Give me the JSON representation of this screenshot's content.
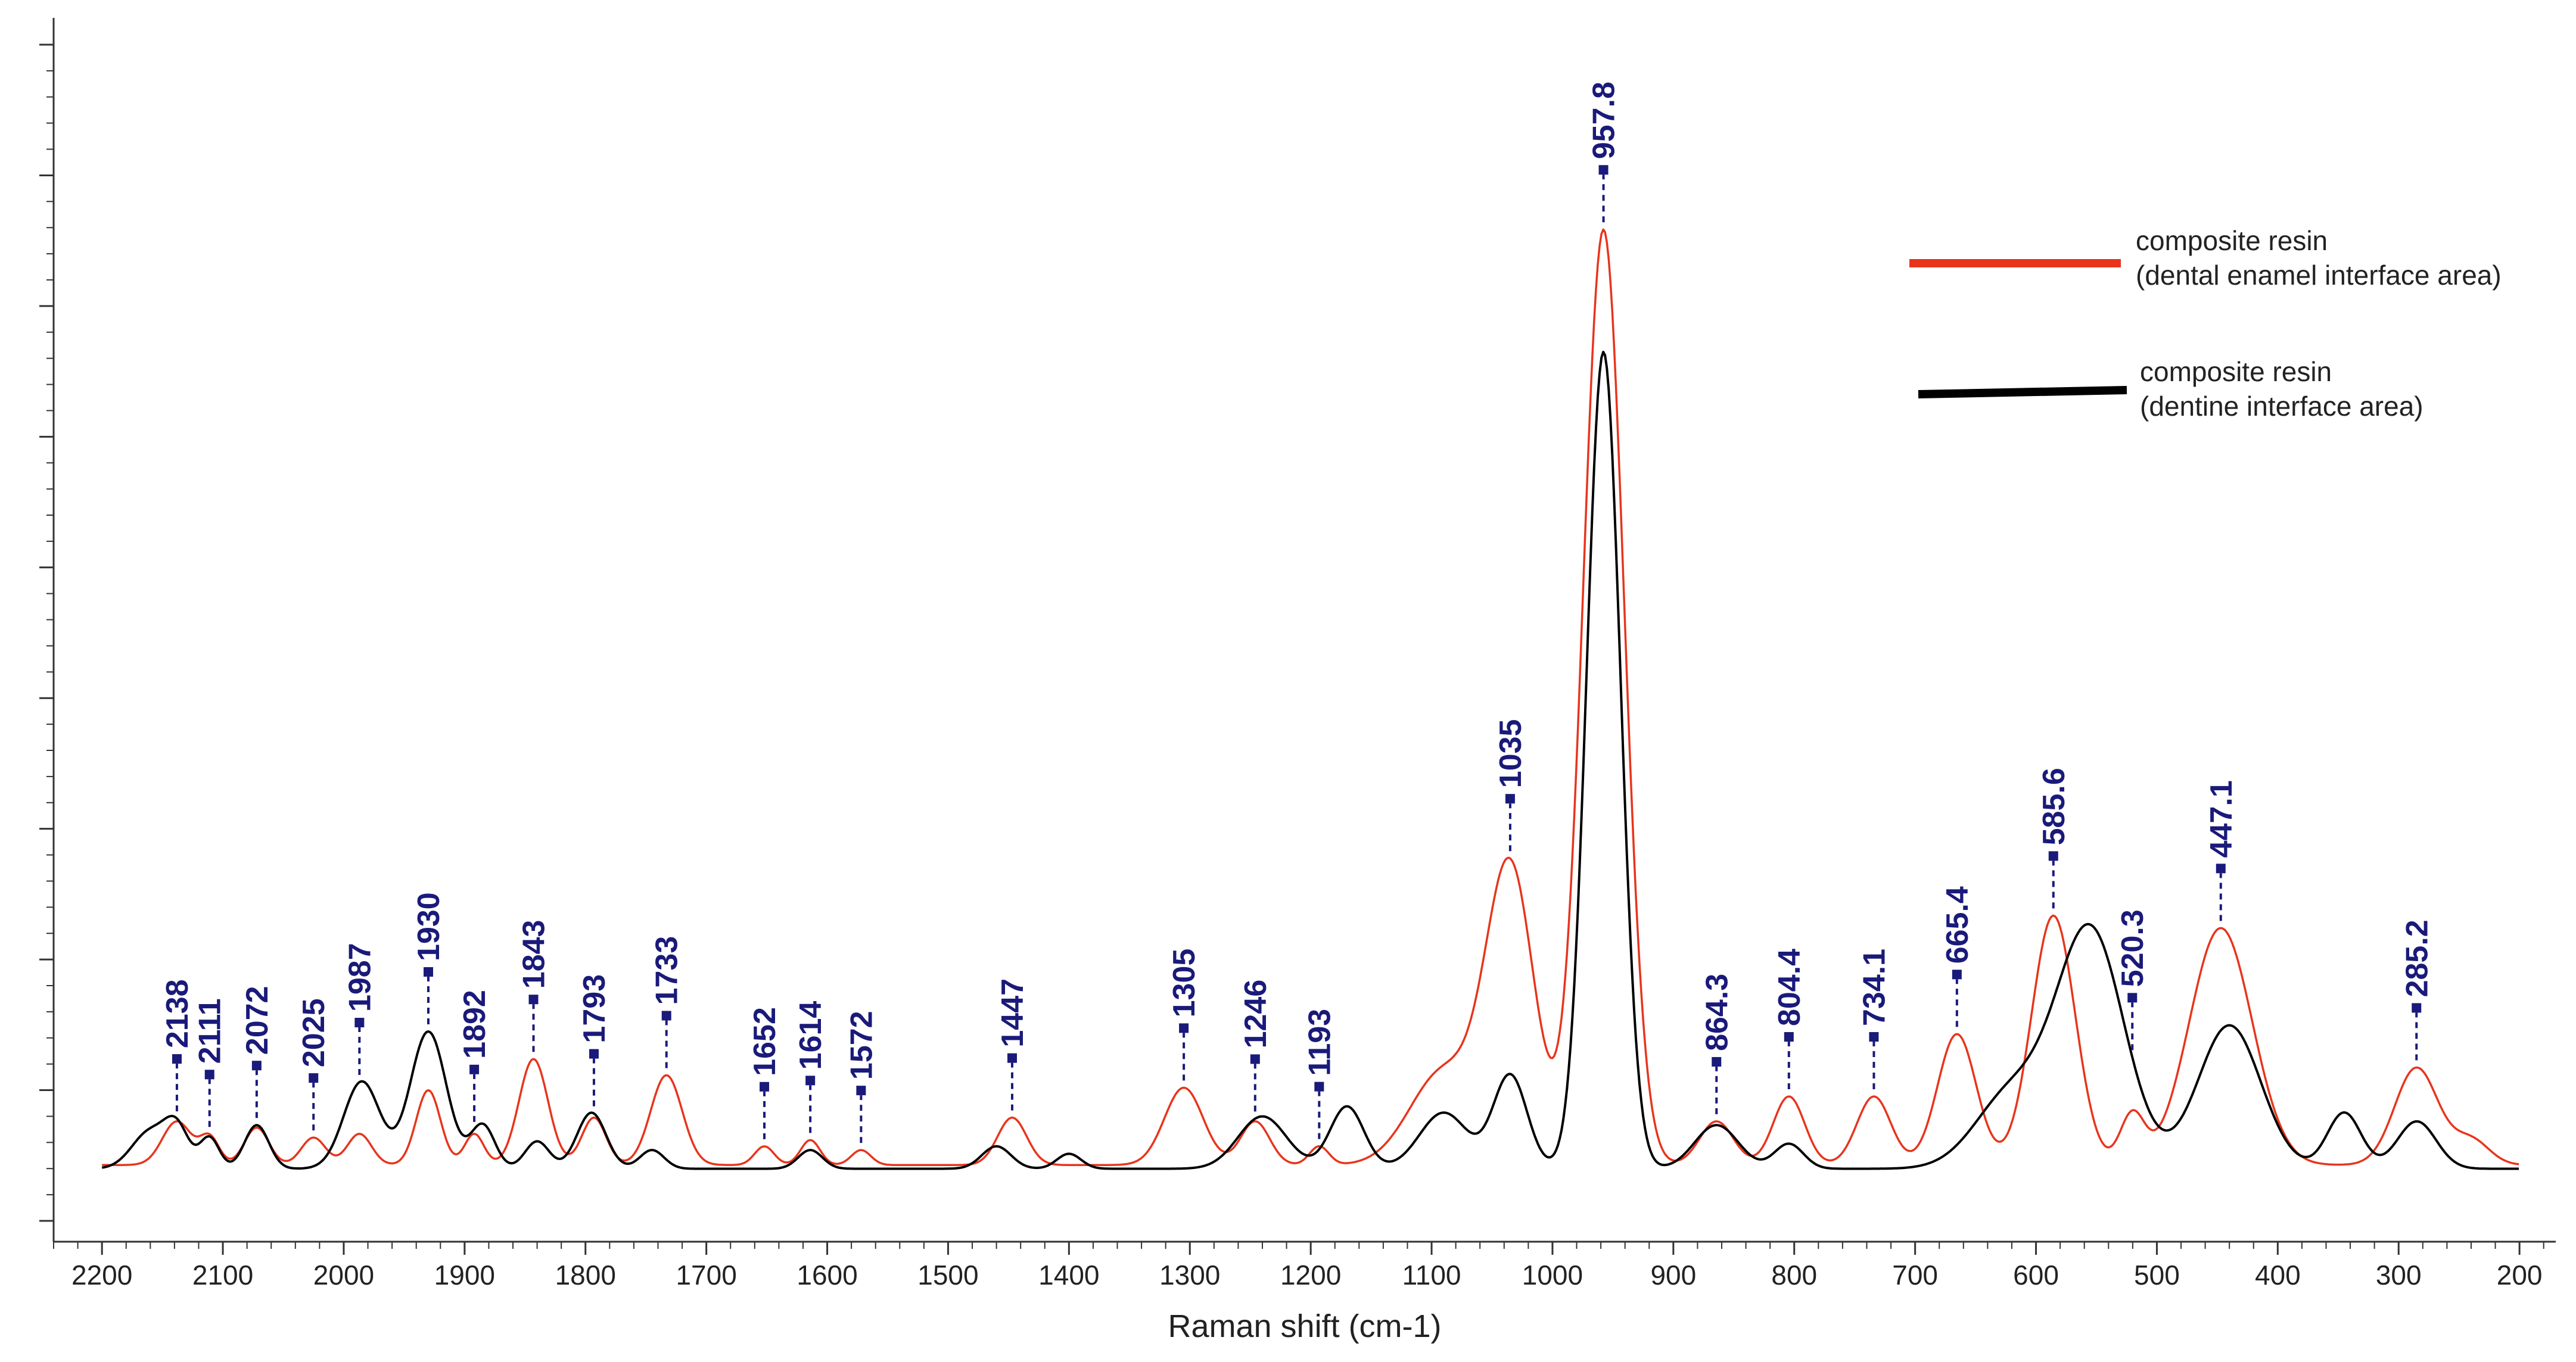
{
  "chart_data": {
    "type": "line",
    "title": "",
    "xlabel": "Raman shift (cm-1)",
    "ylabel": "",
    "xlim": [
      2240,
      170
    ],
    "ylim": [
      -0.35,
      9.2
    ],
    "x_reversed": true,
    "x_ticks": [
      2200,
      2100,
      2000,
      1900,
      1800,
      1700,
      1600,
      1500,
      1400,
      1300,
      1200,
      1100,
      1000,
      900,
      800,
      700,
      600,
      500,
      400,
      300,
      200
    ],
    "y_tick_labels_shown": false,
    "grid": false,
    "legend_position": "top-right",
    "colors": {
      "enamel": "#e8341c",
      "dentine": "#000000",
      "peak_label": "#1a1a7a"
    },
    "series": [
      {
        "name": "composite resin (dental enamel interface area)",
        "legend_lines": [
          "composite resin",
          "(dental enamel interface area)"
        ],
        "color": "#e8341c",
        "baseline": 0.05,
        "peaks": [
          [
            2138,
            0.35,
            12
          ],
          [
            2111,
            0.22,
            8
          ],
          [
            2072,
            0.3,
            10
          ],
          [
            2025,
            0.22,
            10
          ],
          [
            1987,
            0.25,
            10
          ],
          [
            1930,
            0.6,
            10
          ],
          [
            1892,
            0.25,
            8
          ],
          [
            1843,
            0.85,
            12
          ],
          [
            1793,
            0.38,
            10
          ],
          [
            1733,
            0.72,
            13
          ],
          [
            1652,
            0.15,
            8
          ],
          [
            1614,
            0.2,
            8
          ],
          [
            1572,
            0.12,
            8
          ],
          [
            1447,
            0.38,
            12
          ],
          [
            1305,
            0.62,
            16
          ],
          [
            1246,
            0.35,
            12
          ],
          [
            1193,
            0.15,
            8
          ],
          [
            1090,
            0.75,
            28
          ],
          [
            1035,
            2.35,
            20
          ],
          [
            957.8,
            7.5,
            17
          ],
          [
            864.3,
            0.35,
            14
          ],
          [
            804.4,
            0.55,
            13
          ],
          [
            734.1,
            0.55,
            14
          ],
          [
            665.4,
            1.05,
            16
          ],
          [
            585.6,
            2.0,
            18
          ],
          [
            520.3,
            0.4,
            10
          ],
          [
            447.1,
            1.9,
            26
          ],
          [
            285.2,
            0.78,
            18
          ],
          [
            240,
            0.2,
            15
          ]
        ]
      },
      {
        "name": "composite resin (dentine interface area)",
        "legend_lines": [
          "composite resin",
          "(dentine interface area)"
        ],
        "color": "#000000",
        "baseline": 0.02,
        "peaks": [
          [
            2160,
            0.3,
            15
          ],
          [
            2138,
            0.3,
            10
          ],
          [
            2111,
            0.25,
            8
          ],
          [
            2072,
            0.35,
            10
          ],
          [
            1985,
            0.7,
            15
          ],
          [
            1930,
            1.1,
            15
          ],
          [
            1885,
            0.35,
            10
          ],
          [
            1840,
            0.22,
            10
          ],
          [
            1795,
            0.45,
            12
          ],
          [
            1745,
            0.15,
            10
          ],
          [
            1614,
            0.15,
            10
          ],
          [
            1460,
            0.18,
            12
          ],
          [
            1400,
            0.12,
            10
          ],
          [
            1240,
            0.42,
            20
          ],
          [
            1170,
            0.5,
            14
          ],
          [
            1090,
            0.45,
            20
          ],
          [
            1035,
            0.75,
            14
          ],
          [
            957.8,
            6.55,
            14
          ],
          [
            864.3,
            0.35,
            18
          ],
          [
            804.4,
            0.2,
            12
          ],
          [
            620,
            0.6,
            30
          ],
          [
            555,
            1.9,
            28
          ],
          [
            440,
            1.15,
            26
          ],
          [
            345,
            0.45,
            14
          ],
          [
            285,
            0.38,
            16
          ]
        ]
      }
    ],
    "annotations": [
      {
        "label": "2138",
        "x": 2138
      },
      {
        "label": "2111",
        "x": 2111
      },
      {
        "label": "2072",
        "x": 2072
      },
      {
        "label": "2025",
        "x": 2025
      },
      {
        "label": "1987",
        "x": 1987
      },
      {
        "label": "1930",
        "x": 1930
      },
      {
        "label": "1892",
        "x": 1892
      },
      {
        "label": "1843",
        "x": 1843
      },
      {
        "label": "1793",
        "x": 1793
      },
      {
        "label": "1733",
        "x": 1733
      },
      {
        "label": "1652",
        "x": 1652
      },
      {
        "label": "1614",
        "x": 1614
      },
      {
        "label": "1572",
        "x": 1572
      },
      {
        "label": "1447",
        "x": 1447
      },
      {
        "label": "1305",
        "x": 1305
      },
      {
        "label": "1246",
        "x": 1246
      },
      {
        "label": "1193",
        "x": 1193
      },
      {
        "label": "1035",
        "x": 1035
      },
      {
        "label": "957.8",
        "x": 957.8
      },
      {
        "label": "864.3",
        "x": 864.3
      },
      {
        "label": "804.4",
        "x": 804.4
      },
      {
        "label": "734.1",
        "x": 734.1
      },
      {
        "label": "665.4",
        "x": 665.4
      },
      {
        "label": "585.6",
        "x": 585.6
      },
      {
        "label": "520.3",
        "x": 520.3
      },
      {
        "label": "447.1",
        "x": 447.1
      },
      {
        "label": "285.2",
        "x": 285.2
      }
    ]
  }
}
